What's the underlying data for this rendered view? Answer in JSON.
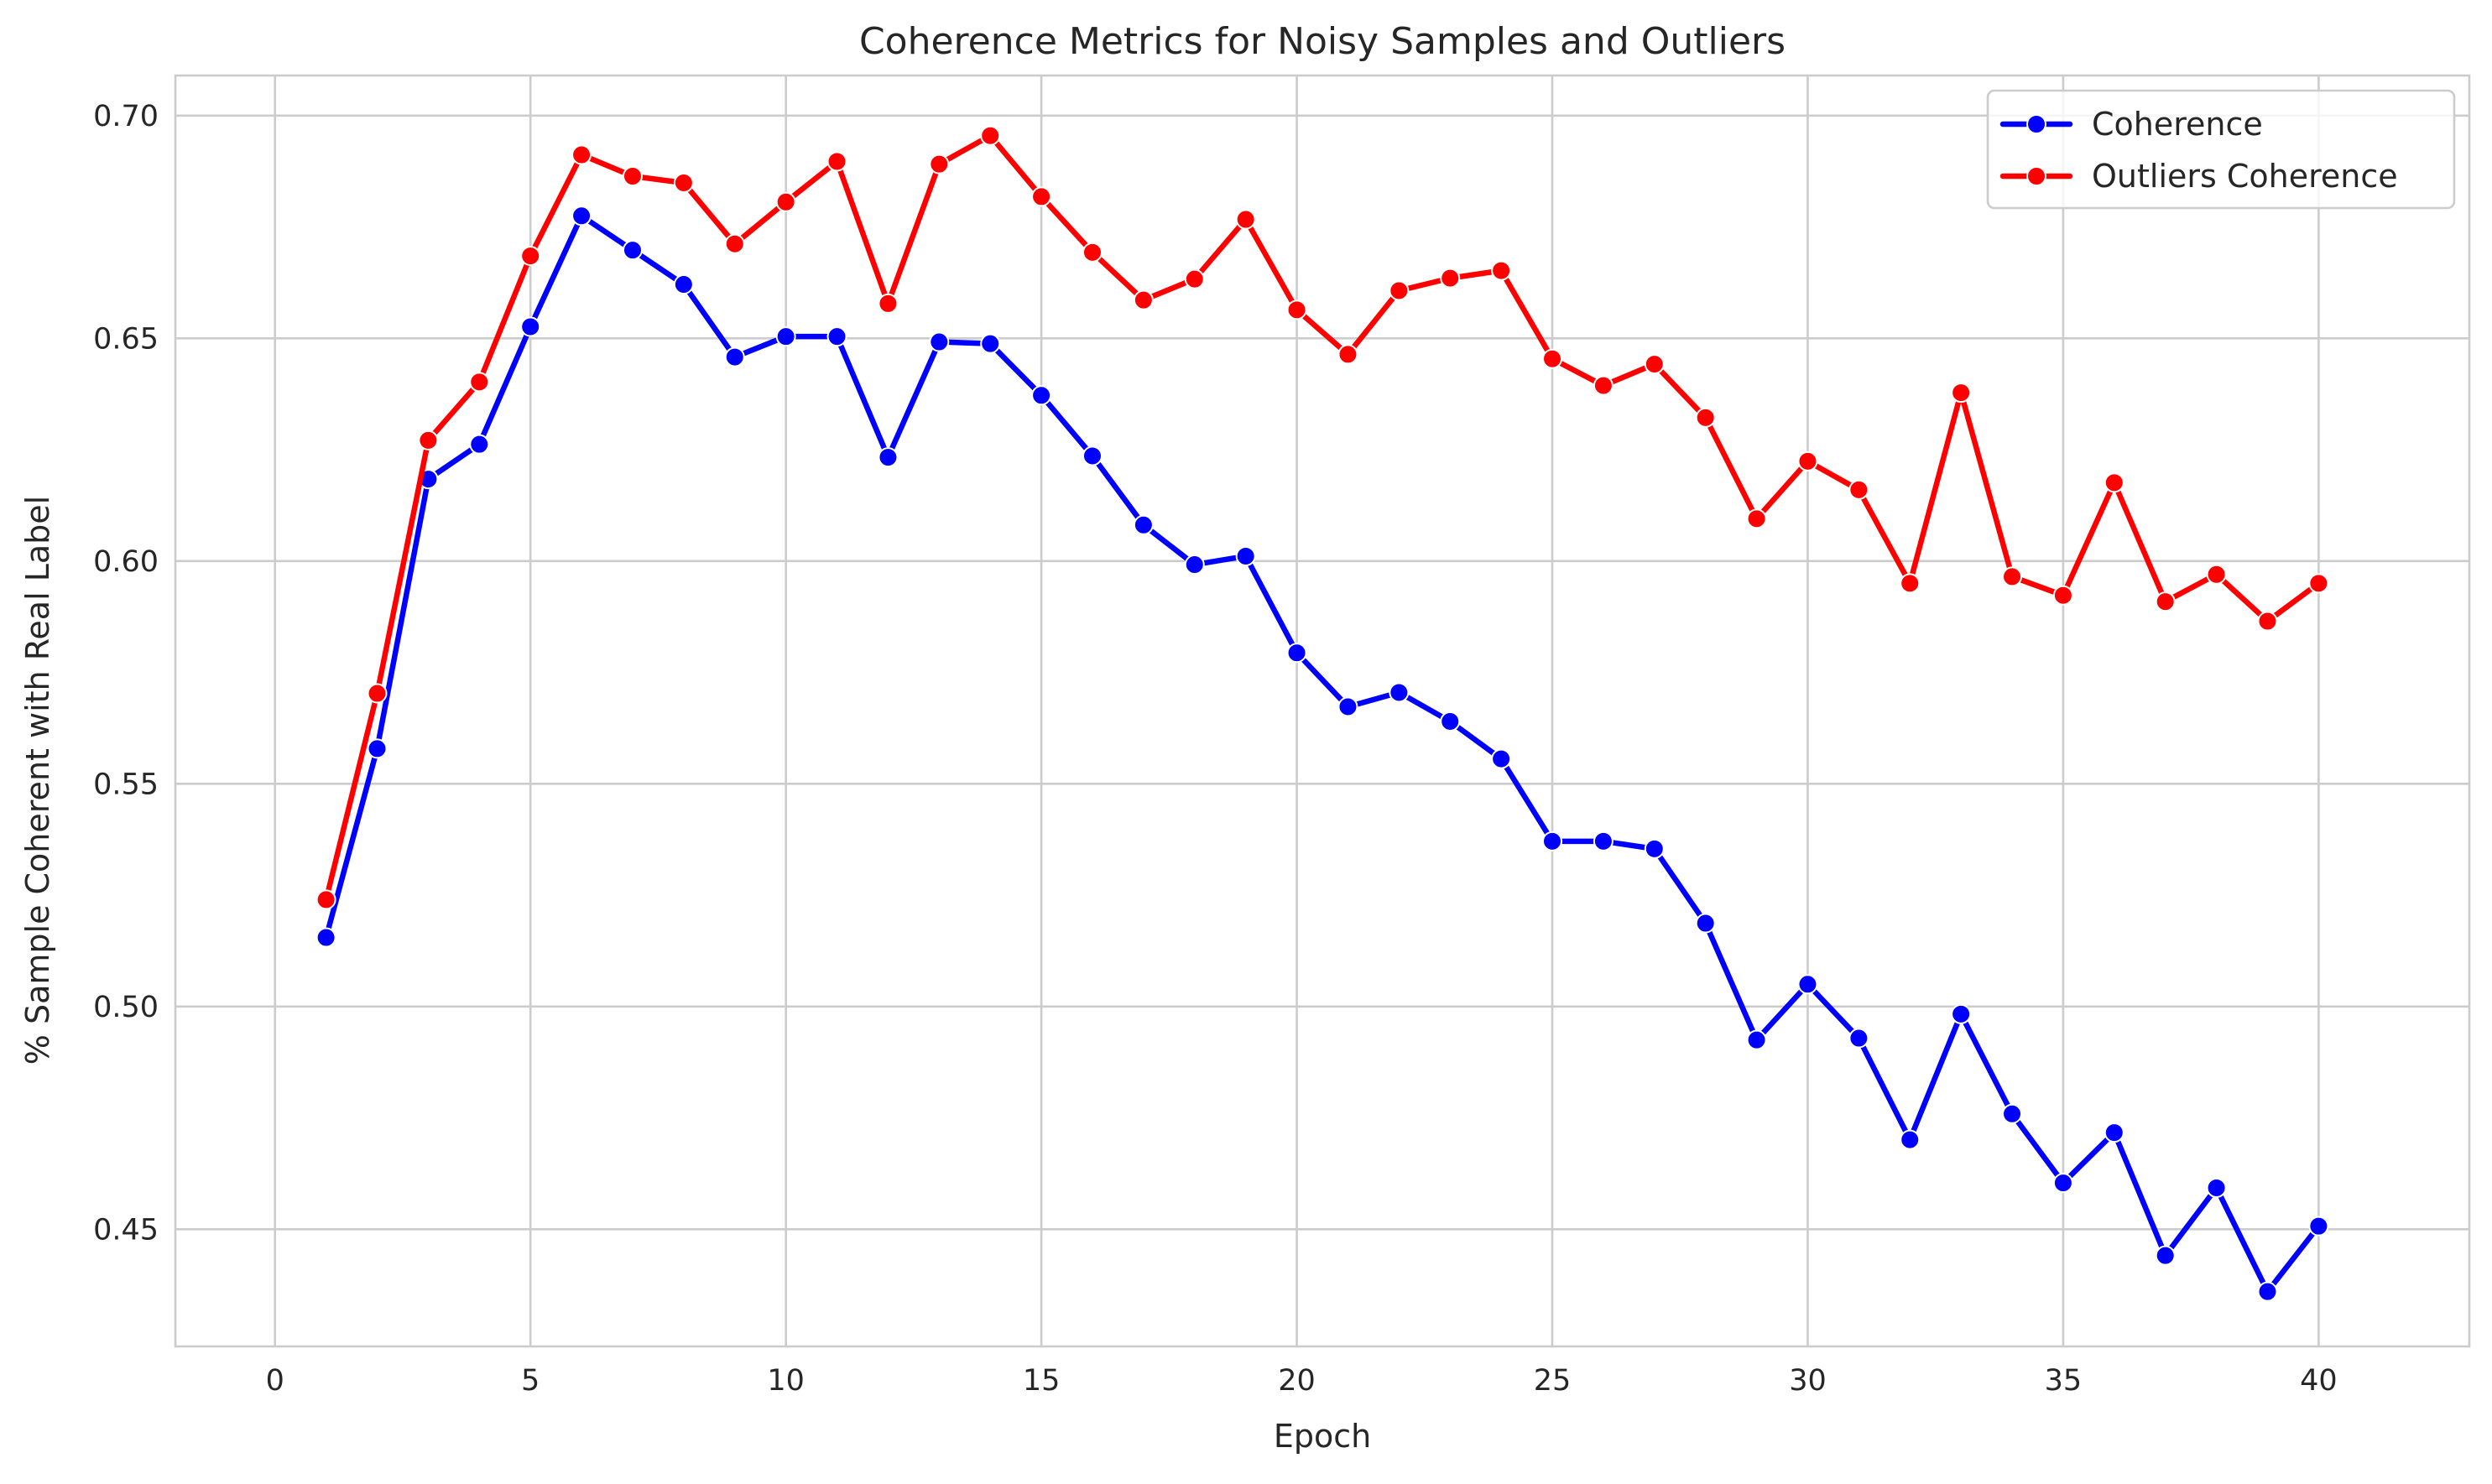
{
  "chart_data": {
    "type": "line",
    "title": "Coherence Metrics for Noisy Samples and Outliers",
    "xlabel": "Epoch",
    "ylabel": "% Sample Coherent with Real Label",
    "xlim": [
      -1.95,
      42.95
    ],
    "ylim": [
      0.4237,
      0.709
    ],
    "x_ticks": [
      0,
      5,
      10,
      15,
      20,
      25,
      30,
      35,
      40
    ],
    "x_tick_labels": [
      "0",
      "5",
      "10",
      "15",
      "20",
      "25",
      "30",
      "35",
      "40"
    ],
    "y_ticks": [
      0.45,
      0.5,
      0.55,
      0.6,
      0.65,
      0.7
    ],
    "y_tick_labels": [
      "0.45",
      "0.50",
      "0.55",
      "0.60",
      "0.65",
      "0.70"
    ],
    "grid": true,
    "legend_position": "top-right",
    "x": [
      1,
      2,
      3,
      4,
      5,
      6,
      7,
      8,
      9,
      10,
      11,
      12,
      13,
      14,
      15,
      16,
      17,
      18,
      19,
      20,
      21,
      22,
      23,
      24,
      25,
      26,
      27,
      28,
      29,
      30,
      31,
      32,
      33,
      34,
      35,
      36,
      37,
      38,
      39,
      40
    ],
    "series": [
      {
        "name": "Coherence",
        "color": "#0000ff",
        "marker": "circle",
        "values": [
          0.5155,
          0.5579,
          0.6184,
          0.6262,
          0.6526,
          0.6775,
          0.6698,
          0.6621,
          0.6458,
          0.6504,
          0.6504,
          0.6233,
          0.6492,
          0.6488,
          0.6372,
          0.6236,
          0.6081,
          0.5992,
          0.6011,
          0.5794,
          0.5673,
          0.5705,
          0.564,
          0.5556,
          0.5371,
          0.5371,
          0.5354,
          0.5187,
          0.4925,
          0.505,
          0.4929,
          0.4701,
          0.4983,
          0.4759,
          0.4604,
          0.4717,
          0.4441,
          0.4593,
          0.436,
          0.4507
        ]
      },
      {
        "name": "Outliers Coherence",
        "color": "#ff0000",
        "marker": "circle",
        "values": [
          0.524,
          0.5703,
          0.6271,
          0.6402,
          0.6685,
          0.6912,
          0.6864,
          0.6849,
          0.6712,
          0.6806,
          0.6897,
          0.6578,
          0.6891,
          0.6955,
          0.6818,
          0.6693,
          0.6586,
          0.6633,
          0.6767,
          0.6564,
          0.6464,
          0.6607,
          0.6635,
          0.6652,
          0.6454,
          0.6394,
          0.6442,
          0.6322,
          0.6095,
          0.6224,
          0.616,
          0.595,
          0.6378,
          0.5965,
          0.5923,
          0.6176,
          0.5909,
          0.597,
          0.5865,
          0.595
        ]
      }
    ]
  }
}
